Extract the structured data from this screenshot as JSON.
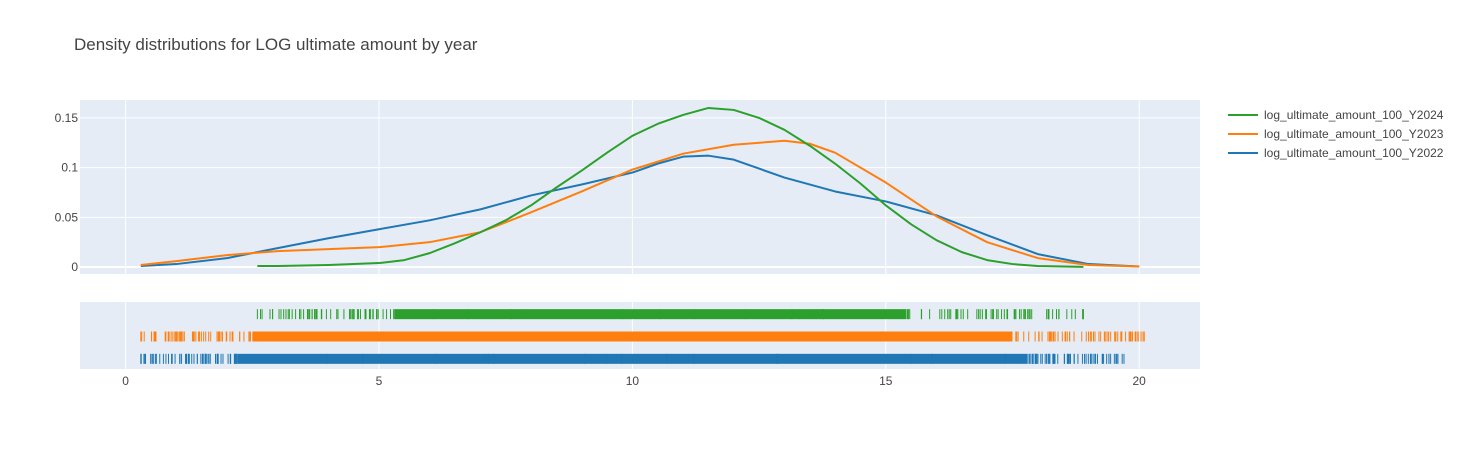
{
  "chart_data": {
    "type": "line",
    "title": "Density distributions for LOG ultimate amount by year",
    "xlabel": "",
    "ylabel": "",
    "xlim": [
      -0.9,
      21.2
    ],
    "ylim": [
      -0.007,
      0.168
    ],
    "x_ticks": [
      0,
      5,
      10,
      15,
      20
    ],
    "x_tick_labels": [
      "0",
      "5",
      "10",
      "15",
      "20"
    ],
    "y_ticks": [
      0,
      0.05,
      0.1,
      0.15
    ],
    "y_tick_labels": [
      "0",
      "0.05",
      "0.1",
      "0.15"
    ],
    "grid": true,
    "legend_position": "top-right",
    "series": [
      {
        "name": "log_ultimate_amount_100_Y2024",
        "color": "#2ca02c",
        "x": [
          2.6,
          3,
          4,
          5,
          5.5,
          6,
          6.5,
          7,
          7.5,
          8,
          8.5,
          9,
          9.5,
          10,
          10.5,
          11,
          11.5,
          12,
          12.5,
          13,
          13.5,
          14,
          14.5,
          15,
          15.5,
          16,
          16.5,
          17,
          17.5,
          18,
          18.5,
          18.9
        ],
        "values": [
          0.001,
          0.001,
          0.002,
          0.004,
          0.007,
          0.014,
          0.024,
          0.035,
          0.047,
          0.062,
          0.08,
          0.097,
          0.115,
          0.132,
          0.144,
          0.153,
          0.16,
          0.158,
          0.15,
          0.138,
          0.122,
          0.104,
          0.084,
          0.062,
          0.043,
          0.027,
          0.015,
          0.007,
          0.003,
          0.001,
          0.0005,
          0.0002
        ]
      },
      {
        "name": "log_ultimate_amount_100_Y2023",
        "color": "#ff7f0e",
        "x": [
          0.3,
          1,
          2,
          3,
          4,
          5,
          6,
          7,
          8,
          9,
          10,
          11,
          12,
          13,
          13.5,
          14,
          15,
          16,
          17,
          18,
          19,
          20
        ],
        "values": [
          0.002,
          0.006,
          0.012,
          0.016,
          0.018,
          0.02,
          0.025,
          0.035,
          0.055,
          0.076,
          0.098,
          0.114,
          0.123,
          0.127,
          0.124,
          0.115,
          0.085,
          0.051,
          0.025,
          0.009,
          0.002,
          0.0005
        ]
      },
      {
        "name": "log_ultimate_amount_100_Y2022",
        "color": "#1f77b4",
        "x": [
          0.3,
          1,
          2,
          3,
          4,
          5,
          6,
          7,
          8,
          9,
          10,
          10.5,
          11,
          11.5,
          12,
          13,
          14,
          15,
          16,
          17,
          18,
          19,
          20
        ],
        "values": [
          0.001,
          0.003,
          0.009,
          0.019,
          0.029,
          0.038,
          0.047,
          0.058,
          0.072,
          0.083,
          0.095,
          0.104,
          0.111,
          0.112,
          0.108,
          0.09,
          0.076,
          0.066,
          0.052,
          0.032,
          0.013,
          0.003,
          0.0005
        ]
      }
    ],
    "rug": {
      "ranges": [
        {
          "series": "log_ultimate_amount_100_Y2024",
          "min": 2.6,
          "max": 18.9,
          "dense_min": 5.3,
          "dense_max": 15.4
        },
        {
          "series": "log_ultimate_amount_100_Y2023",
          "min": 0.3,
          "max": 20.1,
          "dense_min": 2.5,
          "dense_max": 17.5
        },
        {
          "series": "log_ultimate_amount_100_Y2022",
          "min": 0.3,
          "max": 19.7,
          "dense_min": 2.2,
          "dense_max": 17.8
        }
      ]
    }
  }
}
